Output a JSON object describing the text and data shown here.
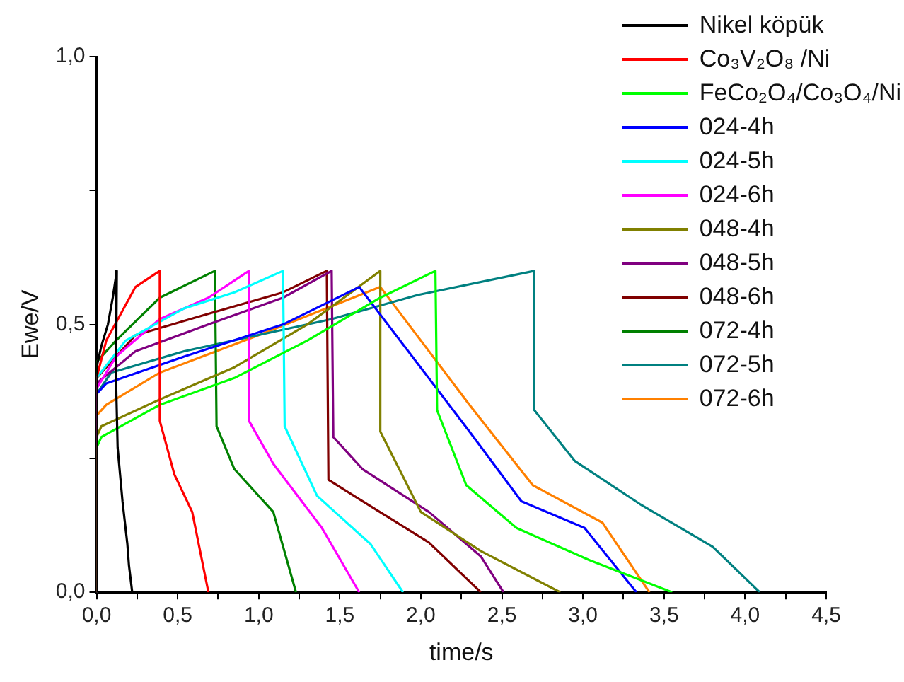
{
  "chart_data": {
    "type": "line",
    "xlabel": "time/s",
    "ylabel": "Ewe/V",
    "xlim": [
      0,
      4.5
    ],
    "ylim": [
      0,
      1
    ],
    "xticks": [
      {
        "value": 0,
        "label": "0,0"
      },
      {
        "value": 0.25,
        "label": null
      },
      {
        "value": 0.5,
        "label": "0,5"
      },
      {
        "value": 0.75,
        "label": null
      },
      {
        "value": 1,
        "label": "1,0"
      },
      {
        "value": 1.25,
        "label": null
      },
      {
        "value": 1.5,
        "label": "1,5"
      },
      {
        "value": 1.75,
        "label": null
      },
      {
        "value": 2,
        "label": "2,0"
      },
      {
        "value": 2.25,
        "label": null
      },
      {
        "value": 2.5,
        "label": "2,5"
      },
      {
        "value": 2.75,
        "label": null
      },
      {
        "value": 3,
        "label": "3,0"
      },
      {
        "value": 3.25,
        "label": null
      },
      {
        "value": 3.5,
        "label": "3,5"
      },
      {
        "value": 3.75,
        "label": null
      },
      {
        "value": 4,
        "label": "4,0"
      },
      {
        "value": 4.25,
        "label": null
      },
      {
        "value": 4.5,
        "label": "4,5"
      }
    ],
    "yticks": [
      {
        "value": 0,
        "label": "0,0"
      },
      {
        "value": 0.25,
        "label": null
      },
      {
        "value": 0.5,
        "label": "0,5"
      },
      {
        "value": 0.75,
        "label": null
      },
      {
        "value": 1,
        "label": "1,0"
      }
    ],
    "grid": false,
    "legend": "top right",
    "marker": "none",
    "line_style": "solid",
    "series": [
      {
        "name": "Nikel köpük",
        "color": "#000000",
        "x": [
          0,
          0,
          0.03,
          0.07,
          0.1,
          0.125,
          0.12,
          0.13,
          0.16,
          0.19,
          0.2,
          0.22
        ],
        "values": [
          0,
          0.42,
          0.46,
          0.5,
          0.55,
          0.6,
          0.4,
          0.27,
          0.17,
          0.09,
          0.05,
          0
        ]
      },
      {
        "name": "Co₃V₂O₈ /Ni",
        "color": "#ff0000",
        "x": [
          0,
          0,
          0.06,
          0.24,
          0.39,
          0.39,
          0.48,
          0.59,
          0.69
        ],
        "values": [
          0,
          0.4,
          0.47,
          0.57,
          0.6,
          0.32,
          0.22,
          0.15,
          0
        ]
      },
      {
        "name": "FeCo₂O₄/Co₃O₄/Ni",
        "color": "#00ff00",
        "x": [
          0,
          0,
          0.03,
          0.39,
          0.85,
          1.3,
          1.75,
          2.09,
          2.1,
          2.28,
          2.59,
          3.04,
          3.55
        ],
        "values": [
          0,
          0.27,
          0.29,
          0.35,
          0.4,
          0.47,
          0.55,
          0.6,
          0.34,
          0.2,
          0.12,
          0.06,
          0
        ]
      },
      {
        "name": "024-4h",
        "color": "#0000ff",
        "x": [
          0,
          0,
          0.06,
          0.54,
          1.15,
          1.62,
          2.3,
          2.62,
          3.01,
          3.33
        ],
        "values": [
          0,
          0.37,
          0.39,
          0.44,
          0.5,
          0.57,
          0.3,
          0.17,
          0.12,
          0
        ]
      },
      {
        "name": "024-5h",
        "color": "#00ffff",
        "x": [
          0,
          0,
          0.18,
          0.54,
          0.85,
          1.15,
          1.16,
          1.36,
          1.69,
          1.89
        ],
        "values": [
          0,
          0.4,
          0.47,
          0.53,
          0.56,
          0.6,
          0.31,
          0.18,
          0.09,
          0
        ]
      },
      {
        "name": "024-6h",
        "color": "#ff00ff",
        "x": [
          0,
          0,
          0.12,
          0.39,
          0.69,
          0.94,
          0.94,
          1.09,
          1.39,
          1.62
        ],
        "values": [
          0,
          0.38,
          0.44,
          0.51,
          0.55,
          0.6,
          0.32,
          0.24,
          0.12,
          0
        ]
      },
      {
        "name": "048-4h",
        "color": "#808000",
        "x": [
          0,
          0,
          0.03,
          0.39,
          0.85,
          1.3,
          1.75,
          1.75,
          2.0,
          2.37,
          2.86
        ],
        "values": [
          0,
          0.29,
          0.31,
          0.36,
          0.42,
          0.5,
          0.6,
          0.3,
          0.15,
          0.077,
          0
        ]
      },
      {
        "name": "048-5h",
        "color": "#800080",
        "x": [
          0,
          0,
          0.24,
          0.69,
          1.15,
          1.45,
          1.46,
          1.64,
          2.05,
          2.37,
          2.51
        ],
        "values": [
          0,
          0.39,
          0.45,
          0.5,
          0.55,
          0.6,
          0.29,
          0.23,
          0.15,
          0.067,
          0
        ]
      },
      {
        "name": "048-6h",
        "color": "#800000",
        "x": [
          0,
          0,
          0.24,
          0.69,
          1.15,
          1.42,
          1.43,
          1.64,
          2.05,
          2.37
        ],
        "values": [
          0,
          0.4,
          0.48,
          0.52,
          0.56,
          0.6,
          0.21,
          0.17,
          0.093,
          0
        ]
      },
      {
        "name": "072-4h",
        "color": "#008000",
        "x": [
          0,
          0,
          0.12,
          0.39,
          0.73,
          0.74,
          0.85,
          1.09,
          1.23
        ],
        "values": [
          0,
          0.43,
          0.47,
          0.55,
          0.6,
          0.31,
          0.23,
          0.15,
          0
        ]
      },
      {
        "name": "072-5h",
        "color": "#008080",
        "x": [
          0,
          0,
          0.09,
          0.54,
          1.45,
          1.98,
          2.7,
          2.7,
          2.95,
          3.35,
          3.8,
          4.09
        ],
        "values": [
          0,
          0.37,
          0.41,
          0.45,
          0.51,
          0.555,
          0.6,
          0.34,
          0.245,
          0.165,
          0.085,
          0
        ]
      },
      {
        "name": "072-6h",
        "color": "#ff8000",
        "x": [
          0,
          0,
          0.06,
          0.39,
          1.0,
          1.75,
          2.3,
          2.69,
          3.12,
          3.41
        ],
        "values": [
          0,
          0.33,
          0.35,
          0.41,
          0.48,
          0.57,
          0.35,
          0.2,
          0.13,
          0
        ]
      }
    ]
  }
}
